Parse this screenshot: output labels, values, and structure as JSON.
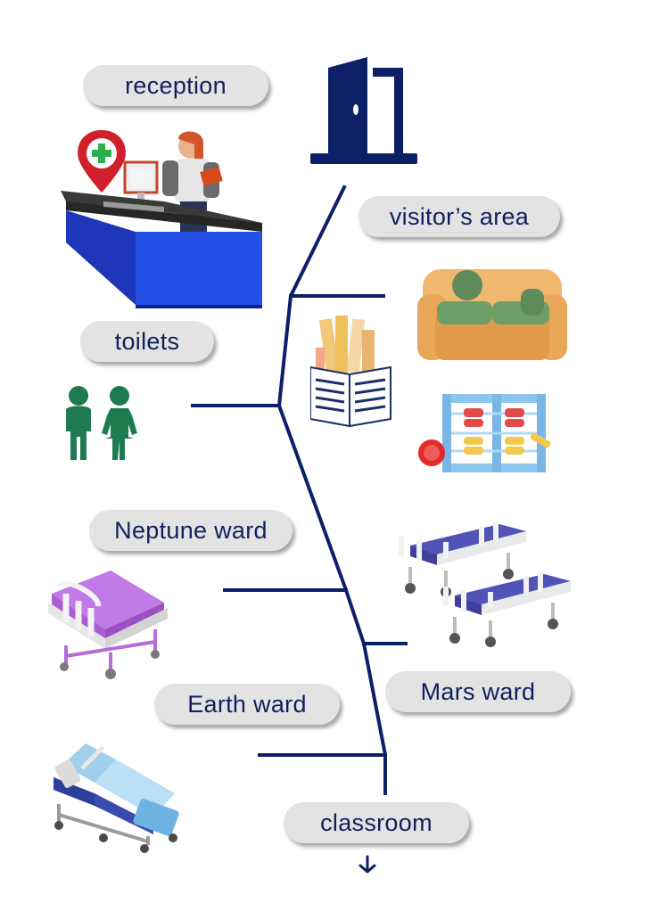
{
  "labels": {
    "reception": "reception",
    "visitors_area": "visitor’s area",
    "toilets": "toilets",
    "neptune_ward": "Neptune ward",
    "mars_ward": "Mars ward",
    "earth_ward": "Earth ward",
    "classroom": "classroom"
  },
  "icons": {
    "door": "door-icon",
    "reception_desk": "reception-desk-illustration",
    "sofa": "sofa-illustration",
    "books": "books-illustration",
    "abacus": "abacus-toy-illustration",
    "toilets": "toilet-people-icon",
    "neptune_bed": "purple-hospital-bed-illustration",
    "mars_beds": "stretcher-beds-illustration",
    "earth_bed": "blue-hospital-bed-illustration",
    "arrow": "arrow-down-icon"
  },
  "colors": {
    "line": "#0d1f66",
    "label_bg": "#e3e3e3",
    "label_text": "#10205e",
    "door": "#0d1f66",
    "toilet_figures": "#1e7a4f"
  }
}
